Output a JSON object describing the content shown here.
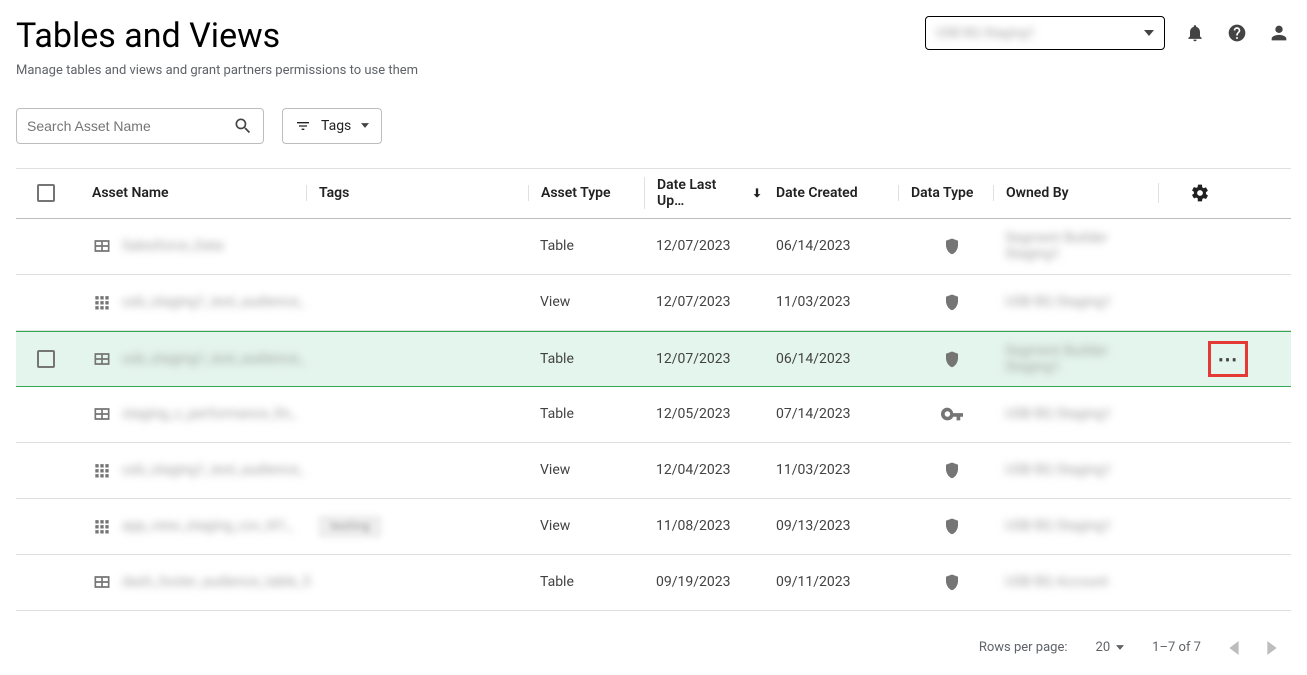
{
  "header": {
    "title": "Tables and Views",
    "subtitle": "Manage tables and views and grant partners permissions to use them",
    "project_selector_value": "USB BQ Staging1"
  },
  "filters": {
    "search_placeholder": "Search Asset Name",
    "tags_button_label": "Tags"
  },
  "columns": {
    "asset_name": "Asset Name",
    "tags": "Tags",
    "asset_type": "Asset Type",
    "date_last_updated": "Date Last Up…",
    "date_created": "Date Created",
    "data_type": "Data Type",
    "owned_by": "Owned By"
  },
  "rows": [
    {
      "icon": "table",
      "name": "Salesforce_Data",
      "tags": [],
      "asset_type": "Table",
      "updated": "12/07/2023",
      "created": "06/14/2023",
      "data_type": "shield",
      "owned_by": "Segment Builder Staging1",
      "selected": false
    },
    {
      "icon": "view",
      "name": "usb_staging1_test_audience_",
      "tags": [],
      "asset_type": "View",
      "updated": "12/07/2023",
      "created": "11/03/2023",
      "data_type": "shield",
      "owned_by": "USB BQ Staging1",
      "selected": false
    },
    {
      "icon": "table",
      "name": "usb_staging1_test_audience_",
      "tags": [],
      "asset_type": "Table",
      "updated": "12/07/2023",
      "created": "06/14/2023",
      "data_type": "shield",
      "owned_by": "Segment Builder Staging1",
      "selected": true
    },
    {
      "icon": "table",
      "name": "staging_c_performance_fin_",
      "tags": [],
      "asset_type": "Table",
      "updated": "12/05/2023",
      "created": "07/14/2023",
      "data_type": "key",
      "owned_by": "USB BQ Staging1",
      "selected": false
    },
    {
      "icon": "view",
      "name": "usb_staging1_test_audience_",
      "tags": [],
      "asset_type": "View",
      "updated": "12/04/2023",
      "created": "11/03/2023",
      "data_type": "shield",
      "owned_by": "USB BQ Staging1",
      "selected": false
    },
    {
      "icon": "view",
      "name": "app_view_staging_csv_t01_",
      "tags": [
        "testing"
      ],
      "asset_type": "View",
      "updated": "11/08/2023",
      "created": "09/13/2023",
      "data_type": "shield",
      "owned_by": "USB BQ Staging1",
      "selected": false
    },
    {
      "icon": "table",
      "name": "dash_footer_audience_table_5",
      "tags": [],
      "asset_type": "Table",
      "updated": "09/19/2023",
      "created": "09/11/2023",
      "data_type": "shield",
      "owned_by": "USB BQ Account",
      "selected": false
    }
  ],
  "pagination": {
    "rows_per_page_label": "Rows per page:",
    "rows_per_page_value": "20",
    "range_label": "1–7 of 7"
  },
  "colors": {
    "selected_row_bg": "#e4f5ed",
    "selected_row_border": "#34a853",
    "highlight_border": "#e53935",
    "text_primary": "#212121",
    "text_secondary": "#5f6368",
    "border_default": "#e0e0e0"
  }
}
